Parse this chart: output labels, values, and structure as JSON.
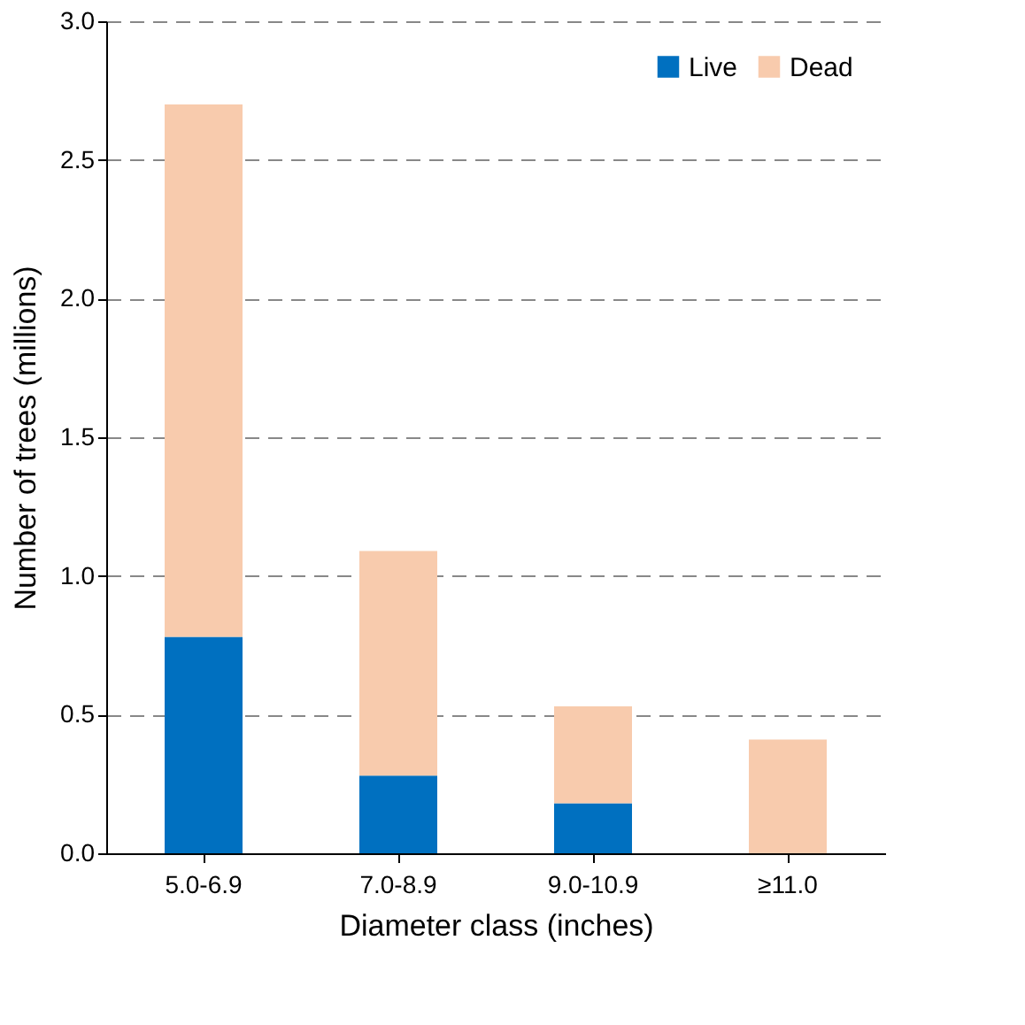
{
  "chart_data": {
    "type": "bar",
    "xlabel": "Diameter class (inches)",
    "ylabel": "Number of trees (millions)",
    "categories": [
      "5.0-6.9",
      "7.0-8.9",
      "9.0-10.9",
      "≥11.0"
    ],
    "series": [
      {
        "name": "Live",
        "color": "#0070c0",
        "values": [
          0.78,
          0.28,
          0.18,
          0
        ]
      },
      {
        "name": "Dead",
        "color": "#f8cbad",
        "values": [
          1.92,
          0.81,
          0.35,
          0.41
        ]
      }
    ],
    "stacked": true,
    "ylim": [
      0,
      3
    ],
    "yticks": [
      {
        "value": 0,
        "label": "0.0"
      },
      0.5,
      {
        "value": 1,
        "label": "1.0"
      },
      1.5,
      {
        "value": 2,
        "label": "2.0"
      },
      2.5,
      {
        "value": 3,
        "label": "3.0"
      }
    ],
    "grid": "y",
    "legend": "top right"
  }
}
